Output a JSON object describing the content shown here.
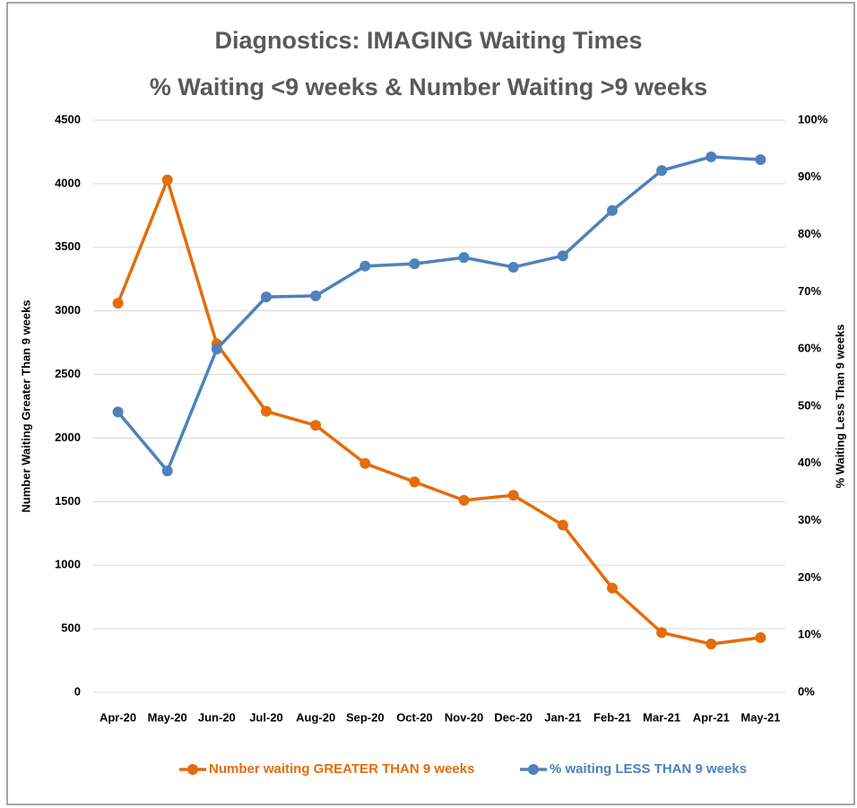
{
  "chart_data": {
    "type": "line",
    "title": "Diagnostics:   IMAGING Waiting Times",
    "subtitle": "% Waiting <9 weeks & Number Waiting >9 weeks",
    "y_label": "Number Waiting Greater Than 9 weeks",
    "y2_label": "% Waiting Less Than 9 weeks",
    "categories": [
      "Apr-20",
      "May-20",
      "Jun-20",
      "Jul-20",
      "Aug-20",
      "Sep-20",
      "Oct-20",
      "Nov-20",
      "Dec-20",
      "Jan-21",
      "Feb-21",
      "Mar-21",
      "Apr-21",
      "May-21"
    ],
    "series": [
      {
        "name": "Number waiting GREATER THAN 9 weeks",
        "color": "#e46c0a",
        "axis": "y",
        "values": [
          3060,
          4030,
          2740,
          2210,
          2100,
          1800,
          1655,
          1510,
          1550,
          1315,
          820,
          470,
          380,
          430
        ]
      },
      {
        "name": "% waiting LESS THAN 9 weeks",
        "color": "#4f81bd",
        "axis": "y2",
        "values": [
          49,
          38.7,
          60,
          69.1,
          69.3,
          74.5,
          74.9,
          76,
          74.3,
          76.3,
          84.2,
          91.2,
          93.6,
          93.1
        ]
      }
    ],
    "ylim": [
      0,
      4500
    ],
    "yticks": [
      0,
      500,
      1000,
      1500,
      2000,
      2500,
      3000,
      3500,
      4000,
      4500
    ],
    "y2lim": [
      0,
      100
    ],
    "y2ticks": [
      {
        "value": 0,
        "label": "0%"
      },
      {
        "value": 10,
        "label": "10%"
      },
      {
        "value": 20,
        "label": "20%"
      },
      {
        "value": 30,
        "label": "30%"
      },
      {
        "value": 40,
        "label": "40%"
      },
      {
        "value": 50,
        "label": "50%"
      },
      {
        "value": 60,
        "label": "60%"
      },
      {
        "value": 70,
        "label": "70%"
      },
      {
        "value": 80,
        "label": "80%"
      },
      {
        "value": 90,
        "label": "90%"
      },
      {
        "value": 100,
        "label": "100%"
      }
    ],
    "grid": true,
    "legend": "bottom"
  }
}
